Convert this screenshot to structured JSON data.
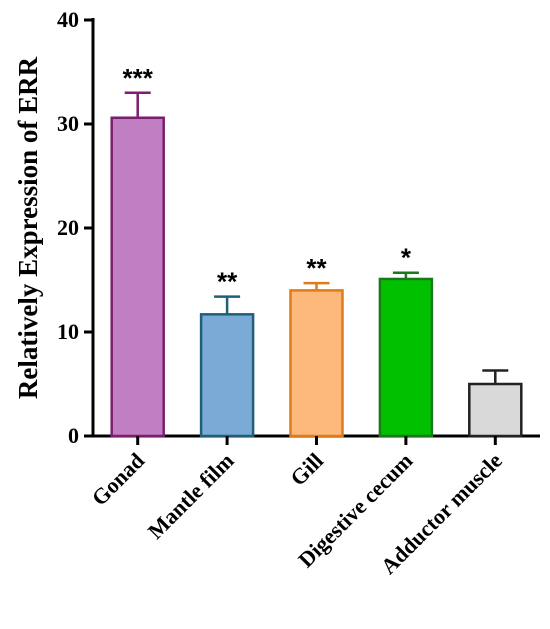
{
  "chart_data": {
    "type": "bar",
    "title": "",
    "xlabel": "",
    "ylabel": "Relatively Expression of ERR",
    "ylim": [
      0,
      40
    ],
    "yticks": [
      0,
      10,
      20,
      30,
      40
    ],
    "grid": false,
    "categories": [
      "Gonad",
      "Mantle film",
      "Gill",
      "Digestive cecum",
      "Adductor muscle"
    ],
    "values": [
      30.6,
      11.7,
      14.0,
      15.1,
      5.0
    ],
    "errors": [
      2.4,
      1.7,
      0.7,
      0.6,
      1.3
    ],
    "significance": [
      "***",
      "**",
      "**",
      "*",
      ""
    ],
    "fill_colors": [
      "#bf7fc0",
      "#7aaad6",
      "#fdb97c",
      "#00c000",
      "#d9d9d9"
    ],
    "edge_colors": [
      "#7a1f6f",
      "#1f5f7a",
      "#e07b1a",
      "#1a7a1a",
      "#222222"
    ]
  }
}
